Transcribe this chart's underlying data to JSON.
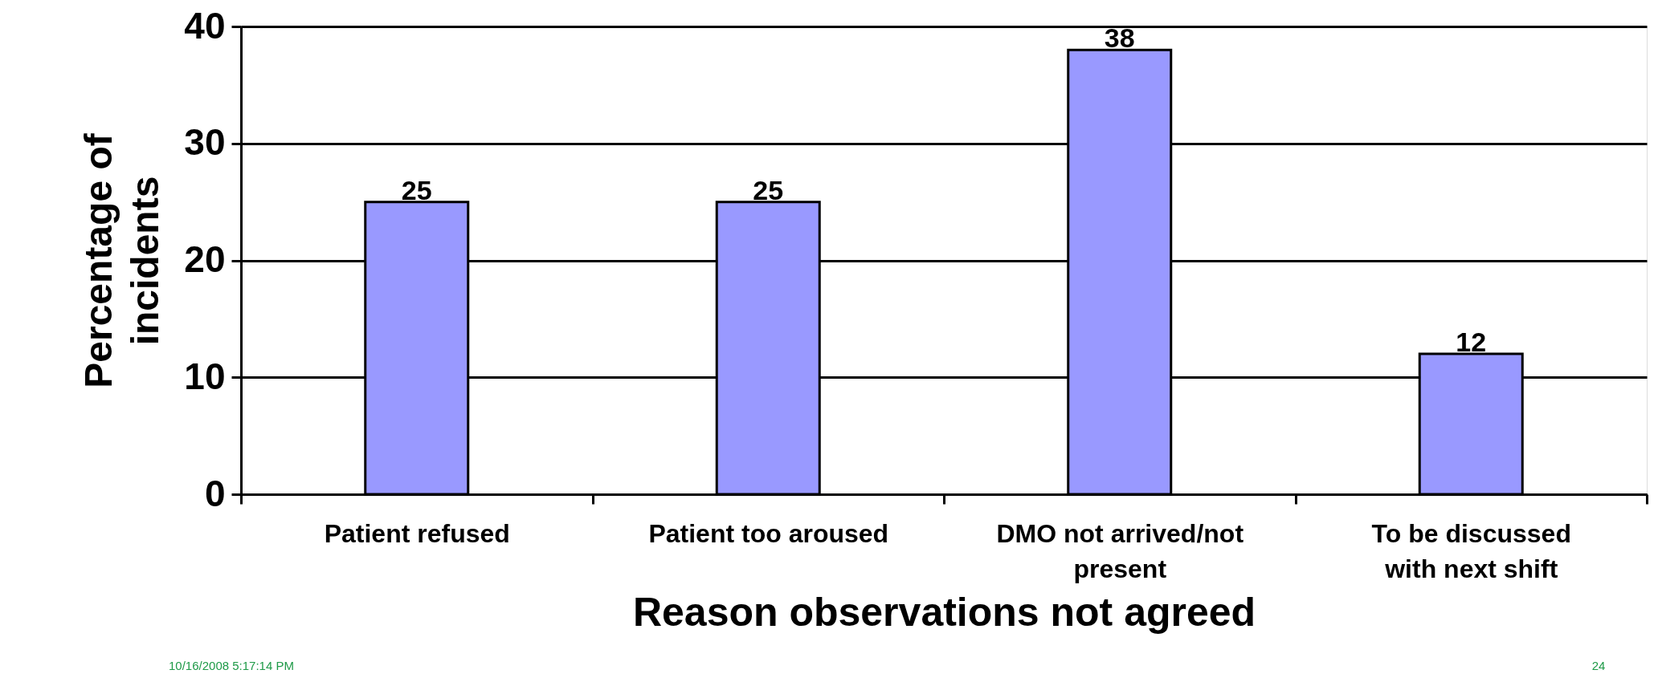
{
  "chart_data": {
    "type": "bar",
    "categories": [
      "Patient refused",
      "Patient too aroused",
      "DMO not arrived/not present",
      "To be discussed with next shift"
    ],
    "values": [
      25,
      25,
      38,
      12
    ],
    "color": "#9999ff",
    "xlabel": "Reason observations not agreed",
    "ylabel": "Percentage of incidents",
    "ylim": [
      0,
      40
    ],
    "yticks": [
      0,
      10,
      20,
      30,
      40
    ],
    "grid": "y",
    "data_labels": true,
    "annotations": [
      "10/16/2008 5:17:14 PM",
      "24"
    ]
  }
}
